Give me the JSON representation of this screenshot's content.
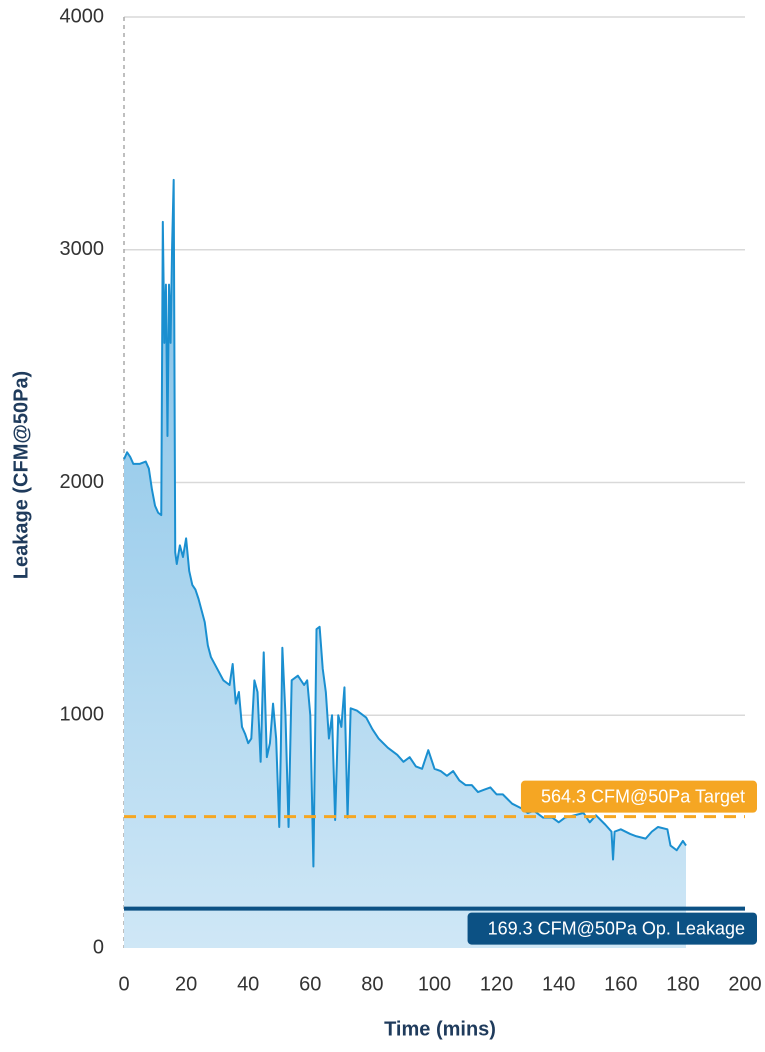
{
  "chart_data": {
    "type": "area",
    "x_label": "Time (mins)",
    "y_label": "Leakage (CFM@50Pa)",
    "x": [
      0,
      1,
      2,
      3,
      5,
      7,
      8,
      9,
      10,
      11,
      12,
      12.5,
      13,
      13.5,
      14,
      14.5,
      15,
      15.5,
      16,
      16.5,
      17,
      18,
      19,
      20,
      21,
      22,
      23,
      24,
      25,
      26,
      27,
      28,
      30,
      32,
      34,
      35,
      36,
      37,
      38,
      39,
      40,
      41,
      42,
      43,
      44,
      45,
      46,
      47,
      48,
      49,
      50,
      50.5,
      51,
      52,
      53,
      54,
      56,
      58,
      59,
      60,
      61,
      62,
      63,
      64,
      65,
      66,
      67,
      68,
      69,
      70,
      71,
      72,
      73,
      75,
      78,
      80,
      82,
      85,
      88,
      90,
      92,
      94,
      96,
      98,
      100,
      102,
      104,
      106,
      108,
      110,
      112,
      114,
      116,
      118,
      120,
      122,
      125,
      128,
      130,
      132,
      135,
      138,
      140,
      142,
      145,
      148,
      150,
      152,
      155,
      157,
      157.5,
      158,
      160,
      163,
      165,
      168,
      170,
      172,
      175,
      176,
      178,
      180,
      181
    ],
    "series": [
      {
        "name": "Leakage",
        "color": "#1a8fd0",
        "values": [
          2100,
          2130,
          2110,
          2080,
          2080,
          2090,
          2060,
          1970,
          1900,
          1870,
          1860,
          3120,
          2600,
          2850,
          2200,
          2850,
          2600,
          3020,
          3300,
          1700,
          1650,
          1730,
          1680,
          1760,
          1620,
          1560,
          1540,
          1500,
          1450,
          1400,
          1300,
          1250,
          1200,
          1150,
          1130,
          1220,
          1050,
          1100,
          950,
          920,
          880,
          900,
          1150,
          1100,
          800,
          1270,
          820,
          880,
          1050,
          900,
          520,
          850,
          1290,
          1000,
          520,
          1150,
          1170,
          1130,
          1150,
          1000,
          350,
          1370,
          1380,
          1200,
          1100,
          900,
          1000,
          550,
          1000,
          950,
          1120,
          560,
          1030,
          1020,
          990,
          940,
          900,
          860,
          830,
          800,
          820,
          780,
          770,
          850,
          770,
          760,
          740,
          760,
          720,
          700,
          700,
          670,
          680,
          690,
          660,
          660,
          620,
          600,
          580,
          590,
          560,
          560,
          540,
          560,
          570,
          580,
          540,
          570,
          530,
          500,
          380,
          500,
          510,
          490,
          480,
          470,
          500,
          520,
          510,
          440,
          420,
          460,
          440
        ]
      }
    ],
    "reference_lines": [
      {
        "value": 564.3,
        "label": "564.3 CFM@50Pa Target",
        "color": "#f5a623",
        "style": "dashed"
      },
      {
        "value": 169.3,
        "label": "169.3 CFM@50Pa Op. Leakage",
        "color": "#0c5184",
        "style": "solid"
      }
    ],
    "xlim": [
      0,
      200
    ],
    "xticks": [
      0,
      20,
      40,
      60,
      80,
      100,
      120,
      140,
      160,
      180,
      200
    ],
    "ylim": [
      0,
      4000
    ],
    "yticks": [
      0,
      1000,
      2000,
      3000,
      4000
    ],
    "grid": true
  }
}
